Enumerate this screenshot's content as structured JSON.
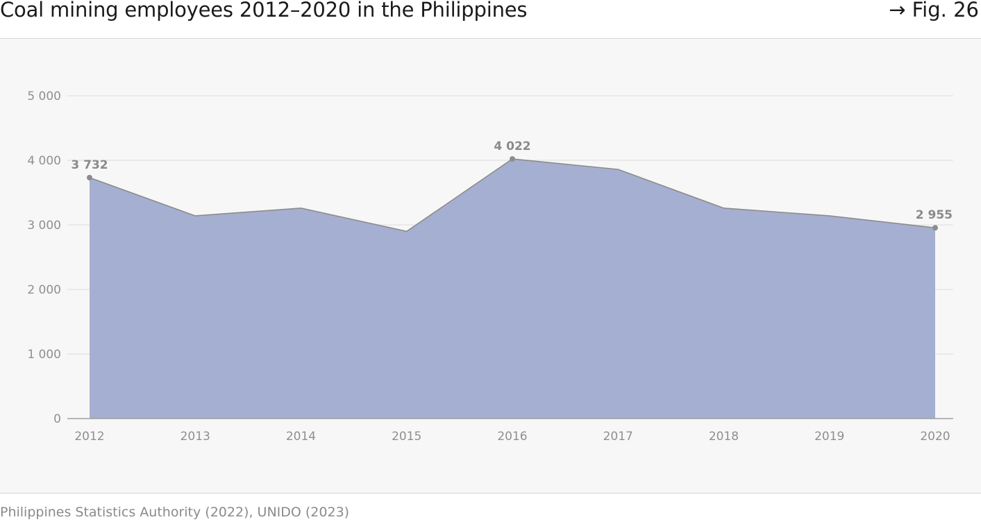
{
  "header": {
    "title": "Coal mining employees 2012–2020 in the Philippines",
    "fig_ref": "→ Fig. 26"
  },
  "source": "Philippines Statistics Authority (2022), UNIDO (2023)",
  "colors": {
    "area_fill": "#a5afd1",
    "line": "#8c8c8c",
    "marker": "#8c8c8c",
    "grid": "#e6e6e6",
    "axis": "#a0a0a0",
    "tick_text": "#8f8f8f",
    "label_text": "#8a8a8a",
    "panel_bg": "#f7f7f7"
  },
  "chart_data": {
    "type": "area",
    "title": "Coal mining employees 2012–2020 in the Philippines",
    "xlabel": "",
    "ylabel": "",
    "categories": [
      "2012",
      "2013",
      "2014",
      "2015",
      "2016",
      "2017",
      "2018",
      "2019",
      "2020"
    ],
    "values": [
      3732,
      3140,
      3260,
      2900,
      4022,
      3860,
      3260,
      3140,
      2955
    ],
    "ylim": [
      0,
      5000
    ],
    "yticks": [
      0,
      1000,
      2000,
      3000,
      4000,
      5000
    ],
    "ytick_labels": [
      "0",
      "1 000",
      "2 000",
      "3 000",
      "4 000",
      "5 000"
    ],
    "data_labels": [
      {
        "category": "2012",
        "text": "3 732"
      },
      {
        "category": "2016",
        "text": "4 022"
      },
      {
        "category": "2020",
        "text": "2 955"
      }
    ],
    "grid": true,
    "legend": "none"
  }
}
